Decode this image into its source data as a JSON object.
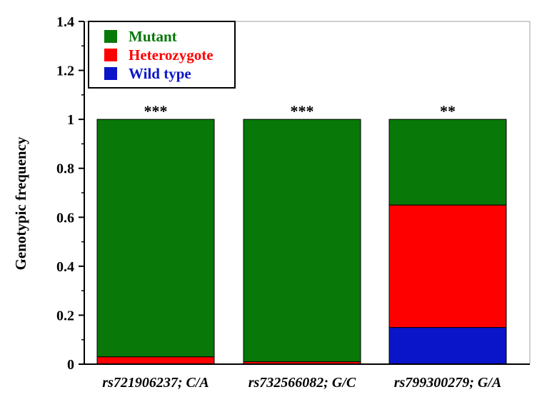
{
  "chart_data": {
    "type": "bar",
    "stacked": true,
    "ylabel": "Genotypic frequency",
    "xlabel": "",
    "ylim": [
      0,
      1.4
    ],
    "yticks": [
      "0",
      "0.2",
      "0.4",
      "0.6",
      "0.8",
      "1",
      "1.2",
      "1.4"
    ],
    "ytick_values": [
      0,
      0.2,
      0.4,
      0.6,
      0.8,
      1.0,
      1.2,
      1.4
    ],
    "categories": [
      "rs721906237; C/A",
      "rs732566082; G/C",
      "rs799300279; G/A"
    ],
    "series": [
      {
        "name": "Wild type",
        "color": "#0a14c8",
        "values": [
          0,
          0,
          0.15
        ]
      },
      {
        "name": "Heterozygote",
        "color": "#ff0000",
        "values": [
          0.03,
          0.01,
          0.5
        ]
      },
      {
        "name": "Mutant",
        "color": "#087808",
        "values": [
          0.97,
          0.99,
          0.35
        ]
      }
    ],
    "legend_order": [
      "Mutant",
      "Heterozygote",
      "Wild type"
    ],
    "legend_position": "top-left",
    "annotations": [
      "***",
      "***",
      "**"
    ],
    "grid": false
  }
}
